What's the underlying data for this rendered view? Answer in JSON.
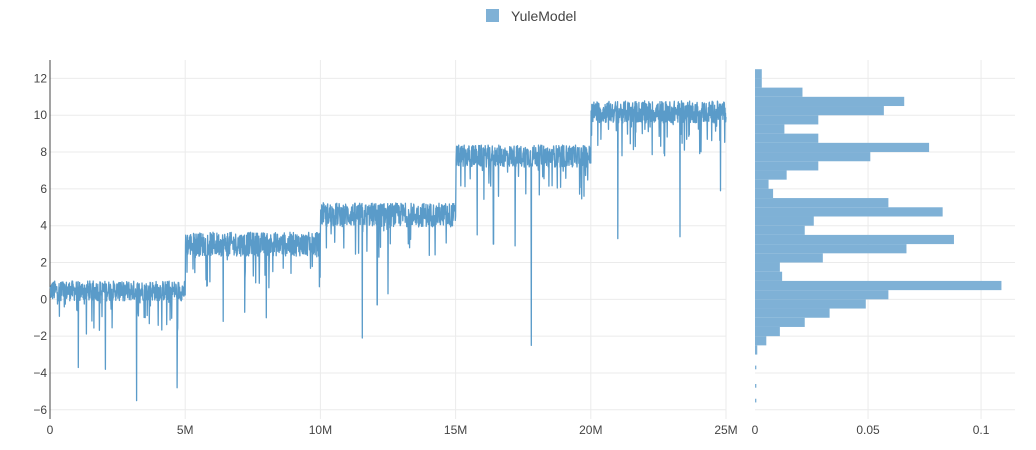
{
  "chart_data": [
    {
      "type": "line",
      "panel": "trace",
      "legend": {
        "placement": "top-center",
        "entries": [
          "YuleModel"
        ]
      },
      "series": [
        {
          "name": "YuleModel",
          "color": "#5a9bc9",
          "segments": [
            {
              "x_start": 0,
              "x_end": 5000000,
              "level": 0.3,
              "upper": 1.0,
              "spread": 1.1,
              "deep_drops": [
                [
                  3200000,
                  -5.5
                ],
                [
                  4700000,
                  -4.8
                ],
                [
                  2050000,
                  -3.8
                ],
                [
                  1050000,
                  -3.7
                ]
              ]
            },
            {
              "x_start": 5000000,
              "x_end": 10000000,
              "level": 2.8,
              "upper": 3.7,
              "spread": 1.3,
              "deep_drops": [
                [
                  6400000,
                  -1.2
                ],
                [
                  8000000,
                  -1.0
                ],
                [
                  7200000,
                  -0.7
                ]
              ]
            },
            {
              "x_start": 10000000,
              "x_end": 15000000,
              "level": 4.4,
              "upper": 5.5,
              "spread": 1.3,
              "deep_drops": [
                [
                  11550000,
                  -2.1
                ],
                [
                  12100000,
                  -0.3
                ],
                [
                  12500000,
                  0.3
                ]
              ]
            },
            {
              "x_start": 15000000,
              "x_end": 20000000,
              "level": 7.6,
              "upper": 9.0,
              "spread": 1.2,
              "deep_drops": [
                [
                  17800000,
                  -2.5
                ],
                [
                  16400000,
                  3.0
                ],
                [
                  17200000,
                  2.9
                ],
                [
                  15800000,
                  3.5
                ]
              ]
            },
            {
              "x_start": 20000000,
              "x_end": 25000000,
              "level": 10.0,
              "upper": 11.8,
              "spread": 1.2,
              "deep_drops": [
                [
                  21000000,
                  3.3
                ],
                [
                  23300000,
                  3.4
                ],
                [
                  24800000,
                  5.9
                ]
              ]
            }
          ]
        }
      ],
      "xlim": [
        0,
        25000000
      ],
      "ylim": [
        -6.5,
        13
      ],
      "x_ticks": [
        0,
        5000000,
        10000000,
        15000000,
        20000000,
        25000000
      ],
      "x_tick_labels": [
        "0",
        "5M",
        "10M",
        "15M",
        "20M",
        "25M"
      ],
      "y_ticks": [
        -6,
        -4,
        -2,
        0,
        2,
        4,
        6,
        8,
        10,
        12
      ],
      "y_tick_labels": [
        "−6",
        "−4",
        "−2",
        "0",
        "2",
        "4",
        "6",
        "8",
        "10",
        "12"
      ],
      "grid": true
    },
    {
      "type": "bar",
      "orientation": "horizontal",
      "panel": "histogram",
      "series": [
        {
          "name": "YuleModel",
          "color": "#7fb1d6",
          "bins": [
            {
              "y_from": -5.6,
              "y_to": -5.4,
              "value": 0.0006
            },
            {
              "y_from": -4.8,
              "y_to": -4.6,
              "value": 0.0006
            },
            {
              "y_from": -3.8,
              "y_to": -3.6,
              "value": 0.0006
            },
            {
              "y_from": -3.0,
              "y_to": -2.5,
              "value": 0.001
            },
            {
              "y_from": -2.5,
              "y_to": -2.0,
              "value": 0.005
            },
            {
              "y_from": -2.0,
              "y_to": -1.5,
              "value": 0.011
            },
            {
              "y_from": -1.5,
              "y_to": -1.0,
              "value": 0.022
            },
            {
              "y_from": -1.0,
              "y_to": -0.5,
              "value": 0.033
            },
            {
              "y_from": -0.5,
              "y_to": 0.0,
              "value": 0.049
            },
            {
              "y_from": 0.0,
              "y_to": 0.5,
              "value": 0.059
            },
            {
              "y_from": 0.5,
              "y_to": 1.0,
              "value": 0.109
            },
            {
              "y_from": 1.0,
              "y_to": 1.5,
              "value": 0.012
            },
            {
              "y_from": 1.5,
              "y_to": 2.0,
              "value": 0.011
            },
            {
              "y_from": 2.0,
              "y_to": 2.5,
              "value": 0.03
            },
            {
              "y_from": 2.5,
              "y_to": 3.0,
              "value": 0.067
            },
            {
              "y_from": 3.0,
              "y_to": 3.5,
              "value": 0.088
            },
            {
              "y_from": 3.5,
              "y_to": 4.0,
              "value": 0.022
            },
            {
              "y_from": 4.0,
              "y_to": 4.5,
              "value": 0.026
            },
            {
              "y_from": 4.5,
              "y_to": 5.0,
              "value": 0.083
            },
            {
              "y_from": 5.0,
              "y_to": 5.5,
              "value": 0.059
            },
            {
              "y_from": 5.5,
              "y_to": 6.0,
              "value": 0.008
            },
            {
              "y_from": 6.0,
              "y_to": 6.5,
              "value": 0.006
            },
            {
              "y_from": 6.5,
              "y_to": 7.0,
              "value": 0.014
            },
            {
              "y_from": 7.0,
              "y_to": 7.5,
              "value": 0.028
            },
            {
              "y_from": 7.5,
              "y_to": 8.0,
              "value": 0.051
            },
            {
              "y_from": 8.0,
              "y_to": 8.5,
              "value": 0.077
            },
            {
              "y_from": 8.5,
              "y_to": 9.0,
              "value": 0.028
            },
            {
              "y_from": 9.0,
              "y_to": 9.5,
              "value": 0.013
            },
            {
              "y_from": 9.5,
              "y_to": 10.0,
              "value": 0.028
            },
            {
              "y_from": 10.0,
              "y_to": 10.5,
              "value": 0.057
            },
            {
              "y_from": 10.5,
              "y_to": 11.0,
              "value": 0.066
            },
            {
              "y_from": 11.0,
              "y_to": 11.5,
              "value": 0.021
            },
            {
              "y_from": 11.5,
              "y_to": 12.0,
              "value": 0.003
            },
            {
              "y_from": 12.0,
              "y_to": 12.5,
              "value": 0.003
            }
          ]
        }
      ],
      "xlim": [
        0,
        0.115
      ],
      "ylim": [
        -6.5,
        13
      ],
      "x_ticks": [
        0,
        0.05,
        0.1
      ],
      "x_tick_labels": [
        "0",
        "0.05",
        "0.1"
      ],
      "grid": true
    }
  ]
}
